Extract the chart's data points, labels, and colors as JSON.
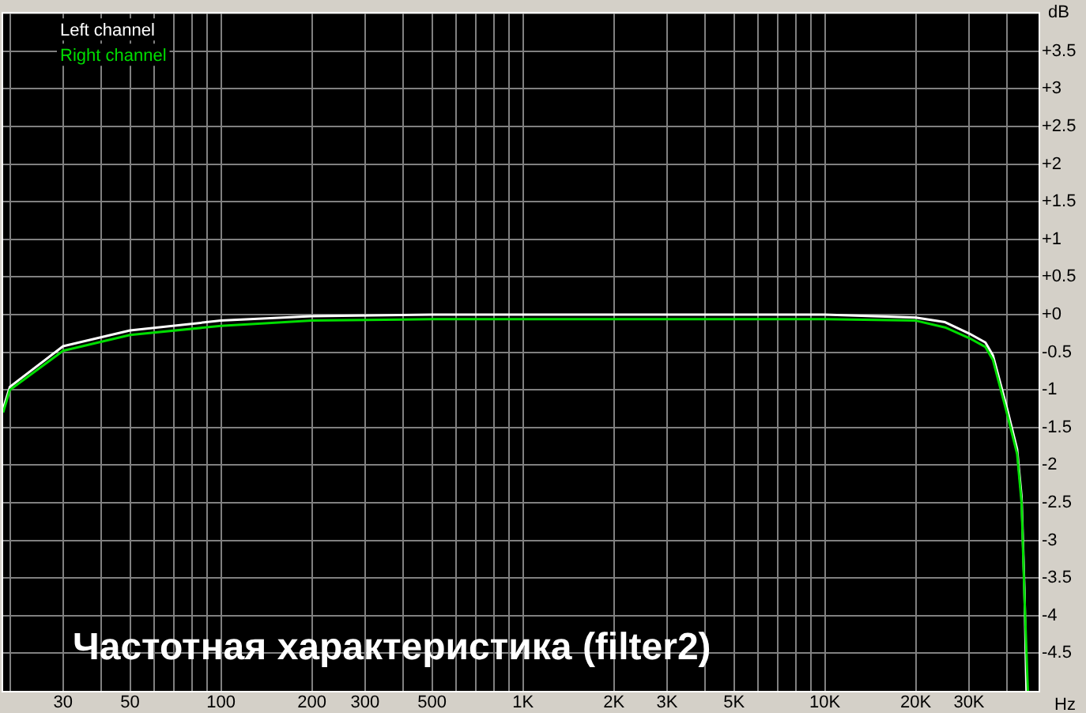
{
  "chart_data": {
    "type": "line",
    "title": "Частотная характеристика (filter2)",
    "xlabel": "Hz",
    "ylabel": "dB",
    "log": "x",
    "grid": true,
    "legend": "top left",
    "marker": "none",
    "line_style": "solid",
    "xlim": [
      19,
      51000
    ],
    "ylim": [
      -5,
      4
    ],
    "xticks": [
      {
        "value": 20,
        "label": null
      },
      30,
      {
        "value": 40,
        "label": null
      },
      50,
      {
        "value": 60,
        "label": null
      },
      {
        "value": 70,
        "label": null
      },
      {
        "value": 80,
        "label": null
      },
      {
        "value": 90,
        "label": null
      },
      100,
      200,
      300,
      {
        "value": 400,
        "label": null
      },
      500,
      {
        "value": 600,
        "label": null
      },
      {
        "value": 700,
        "label": null
      },
      {
        "value": 800,
        "label": null
      },
      {
        "value": 900,
        "label": null
      },
      {
        "value": 1000,
        "label": "1K"
      },
      {
        "value": 2000,
        "label": "2K"
      },
      {
        "value": 3000,
        "label": "3K"
      },
      {
        "value": 4000,
        "label": null
      },
      {
        "value": 5000,
        "label": "5K"
      },
      {
        "value": 6000,
        "label": null
      },
      {
        "value": 7000,
        "label": null
      },
      {
        "value": 8000,
        "label": null
      },
      {
        "value": 9000,
        "label": null
      },
      {
        "value": 10000,
        "label": "10K"
      },
      {
        "value": 20000,
        "label": "20K"
      },
      {
        "value": 30000,
        "label": "30K"
      },
      {
        "value": 40000,
        "label": null
      }
    ],
    "yticks": [
      -4.5,
      -4,
      -3.5,
      -3,
      -2.5,
      -2,
      -1.5,
      -1,
      -0.5,
      {
        "value": 0,
        "label": "+0"
      },
      {
        "value": 0.5,
        "label": "+0.5"
      },
      {
        "value": 1,
        "label": "+1"
      },
      {
        "value": 1.5,
        "label": "+1.5"
      },
      {
        "value": 2,
        "label": "+2"
      },
      {
        "value": 2.5,
        "label": "+2.5"
      },
      {
        "value": 3,
        "label": "+3"
      },
      {
        "value": 3.5,
        "label": "+3.5"
      }
    ],
    "series": [
      {
        "name": "Left channel",
        "color": "#ffffff",
        "x": [
          19,
          20,
          30,
          50,
          100,
          200,
          500,
          1000,
          5000,
          10000,
          20000,
          25000,
          30000,
          34000,
          36000,
          40000,
          43300,
          44800,
          45800,
          46500
        ],
        "values": [
          -1.25,
          -0.96,
          -0.42,
          -0.21,
          -0.08,
          -0.02,
          0,
          0,
          0,
          0,
          -0.04,
          -0.1,
          -0.25,
          -0.37,
          -0.54,
          -1.23,
          -1.79,
          -2.42,
          -3.67,
          -5
        ]
      },
      {
        "name": "Right channel",
        "color": "#00dd00",
        "x": [
          19,
          20,
          30,
          50,
          100,
          200,
          500,
          1000,
          5000,
          10000,
          20000,
          25000,
          30000,
          34000,
          36000,
          40000,
          43300,
          44800,
          45800,
          47000
        ],
        "values": [
          -1.3,
          -1.0,
          -0.48,
          -0.27,
          -0.15,
          -0.08,
          -0.06,
          -0.06,
          -0.06,
          -0.06,
          -0.08,
          -0.17,
          -0.31,
          -0.43,
          -0.6,
          -1.3,
          -1.85,
          -2.5,
          -3.75,
          -5
        ]
      }
    ]
  }
}
